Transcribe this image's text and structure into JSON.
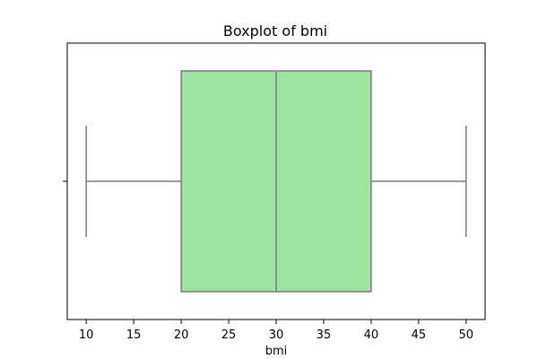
{
  "chart_data": {
    "type": "boxplot",
    "title": "Boxplot of bmi",
    "xlabel": "bmi",
    "ylabel": "",
    "orientation": "horizontal",
    "xlim": [
      8,
      52
    ],
    "xticks": [
      10,
      15,
      20,
      25,
      30,
      35,
      40,
      45,
      50
    ],
    "series": [
      {
        "whisker_low": 10,
        "q1": 20,
        "median": 30,
        "q3": 40,
        "whisker_high": 50
      }
    ],
    "grid": false,
    "colors": {
      "box_fill": "#9de39d",
      "box_edge": "#7a7a7a",
      "whisker": "#7a7a7a",
      "median": "#7a7a7a"
    }
  }
}
